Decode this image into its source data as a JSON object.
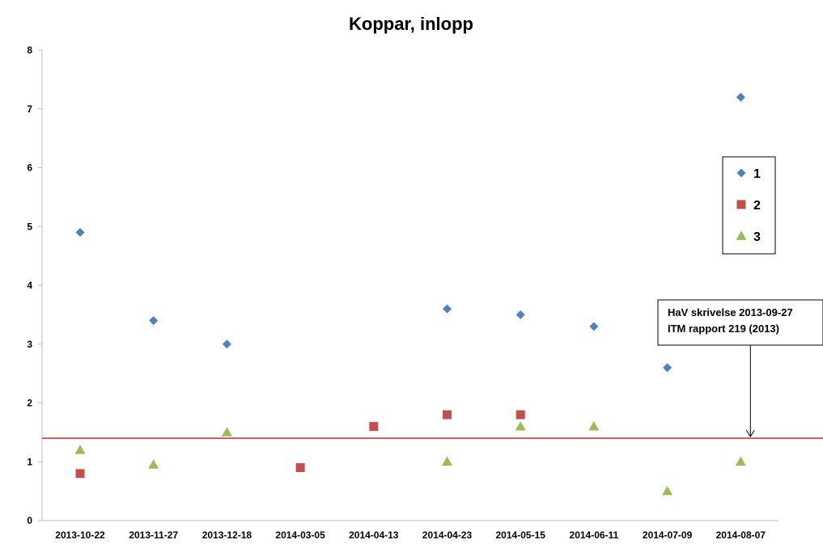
{
  "chart_data": {
    "type": "scatter",
    "title": "Koppar, inlopp",
    "xlabel": "",
    "ylabel": "",
    "categories": [
      "2013-10-22",
      "2013-11-27",
      "2013-12-18",
      "2014-03-05",
      "2014-04-13",
      "2014-04-23",
      "2014-05-15",
      "2014-06-11",
      "2014-07-09",
      "2014-08-07"
    ],
    "ylim": [
      0,
      8
    ],
    "yticks": [
      "0",
      "1",
      "2",
      "3",
      "4",
      "5",
      "6",
      "7",
      "8"
    ],
    "reference_line": 1.4,
    "series": [
      {
        "name": "1",
        "marker": "diamond",
        "color": "#4F81BD",
        "values": [
          4.9,
          3.4,
          3.0,
          null,
          null,
          3.6,
          3.5,
          3.3,
          2.6,
          7.2
        ]
      },
      {
        "name": "2",
        "marker": "square",
        "color": "#C0504D",
        "values": [
          0.8,
          null,
          null,
          0.9,
          1.6,
          1.8,
          1.8,
          null,
          null,
          null
        ]
      },
      {
        "name": "3",
        "marker": "triangle",
        "color": "#9BBB59",
        "values": [
          1.2,
          0.95,
          1.5,
          null,
          null,
          1.0,
          1.6,
          1.6,
          0.5,
          1.0
        ]
      }
    ],
    "legend_position": "right",
    "annotation": {
      "lines": [
        "HaV skrivelse 2013-09-27",
        "ITM rapport 219 (2013)"
      ],
      "points_to": "2014-08-07"
    },
    "grid": false
  },
  "colors": {
    "reference_line": "#CC0000",
    "axis": "#BFBFBF"
  }
}
